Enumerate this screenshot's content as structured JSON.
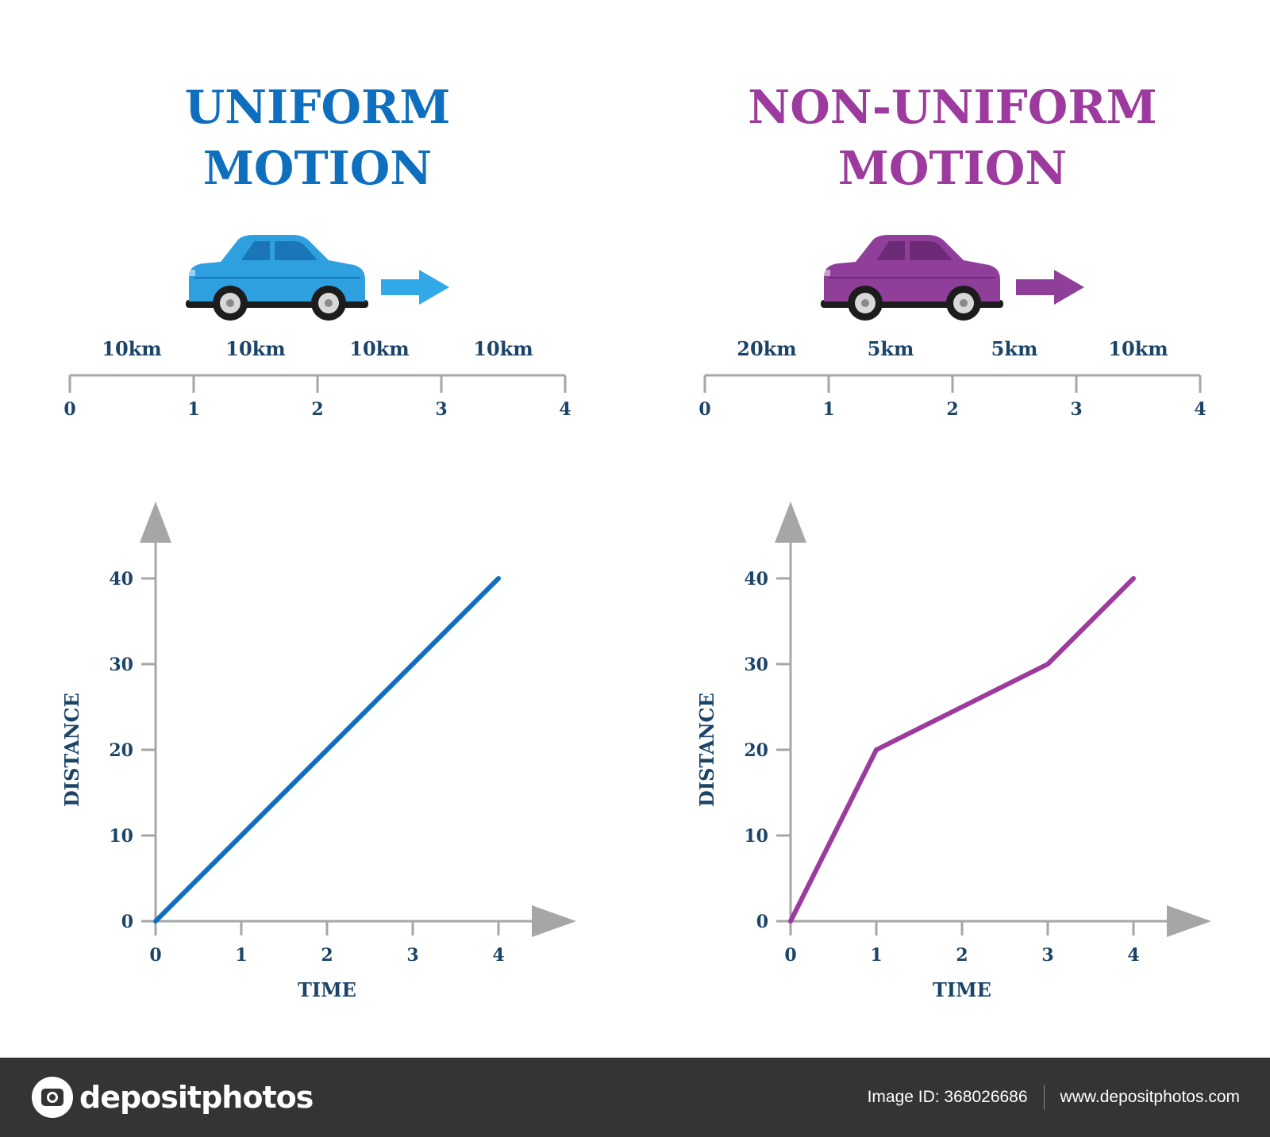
{
  "colors": {
    "uniform": "#0f6fbf",
    "nonuniform": "#9c3a9e",
    "axis": "#a6a6a6",
    "label": "#1b4468"
  },
  "panels": [
    {
      "title_line1": "UNIFORM",
      "title_line2": "MOTION",
      "car_color": "#2ea0e0",
      "car_dark": "#1b76b8",
      "arrow_color": "#31a8e8",
      "segments": [
        "10km",
        "10km",
        "10km",
        "10km"
      ],
      "timeline_ticks": [
        "0",
        "1",
        "2",
        "3",
        "4"
      ]
    },
    {
      "title_line1": "NON-UNIFORM",
      "title_line2": "MOTION",
      "car_color": "#8f3f9a",
      "car_dark": "#6c2a77",
      "arrow_color": "#8f3f9a",
      "segments": [
        "20km",
        "5km",
        "5km",
        "10km"
      ],
      "timeline_ticks": [
        "0",
        "1",
        "2",
        "3",
        "4"
      ]
    }
  ],
  "chart_data": [
    {
      "type": "line",
      "xlabel": "TIME",
      "ylabel": "DISTANCE",
      "x": [
        0,
        1,
        2,
        3,
        4
      ],
      "series": [
        {
          "values": [
            0,
            10,
            20,
            30,
            40
          ],
          "color": "#0f6fbf"
        }
      ],
      "xticks": [
        "0",
        "1",
        "2",
        "3",
        "4"
      ],
      "yticks": [
        "0",
        "10",
        "20",
        "30",
        "40"
      ],
      "xlim": [
        0,
        4
      ],
      "ylim": [
        0,
        40
      ]
    },
    {
      "type": "line",
      "xlabel": "TIME",
      "ylabel": "DISTANCE",
      "x": [
        0,
        1,
        2,
        3,
        4
      ],
      "series": [
        {
          "values": [
            0,
            20,
            25,
            30,
            40
          ],
          "color": "#9c3a9e"
        }
      ],
      "xticks": [
        "0",
        "1",
        "2",
        "3",
        "4"
      ],
      "yticks": [
        "0",
        "10",
        "20",
        "30",
        "40"
      ],
      "xlim": [
        0,
        4
      ],
      "ylim": [
        0,
        40
      ]
    }
  ],
  "footer": {
    "logo_text": "depositphotos",
    "image_id": "Image ID: 368026686",
    "url": "www.depositphotos.com"
  }
}
